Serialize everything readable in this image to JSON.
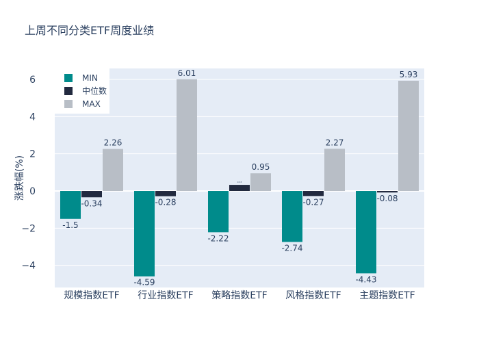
{
  "chart_data": {
    "type": "bar",
    "title": "上周不同分类ETF周度业绩",
    "xlabel": "",
    "ylabel": "涨跌幅(%)",
    "ylim": [
      -5.19,
      6.59
    ],
    "yticks": [
      -4,
      -2,
      0,
      2,
      4,
      6
    ],
    "ytick_labels": [
      "−4",
      "−2",
      "0",
      "2",
      "4",
      "6"
    ],
    "grid": true,
    "legend_position": "top-left",
    "categories": [
      "规模指数ETF",
      "行业指数ETF",
      "策略指数ETF",
      "风格指数ETF",
      "主题指数ETF"
    ],
    "series": [
      {
        "name": "MIN",
        "color": "#008b8b",
        "values": [
          -1.5,
          -4.59,
          -2.22,
          -2.74,
          -4.43
        ],
        "labels": [
          "-1.5",
          "-4.59",
          "-2.22",
          "-2.74",
          "-4.43"
        ]
      },
      {
        "name": "中位数",
        "color": "#222a3f",
        "values": [
          -0.34,
          -0.28,
          0.33,
          -0.27,
          -0.08
        ],
        "labels": [
          "-0.34",
          "-0.28",
          "",
          "-0.27",
          "-0.08"
        ]
      },
      {
        "name": "MAX",
        "color": "#b8bec6",
        "values": [
          2.26,
          6.01,
          0.95,
          2.27,
          5.93
        ],
        "labels": [
          "2.26",
          "6.01",
          "0.95",
          "2.27",
          "5.93"
        ]
      }
    ],
    "colors": {
      "plot_bg": "#e5ecf6",
      "text": "#2a3f5f"
    }
  }
}
